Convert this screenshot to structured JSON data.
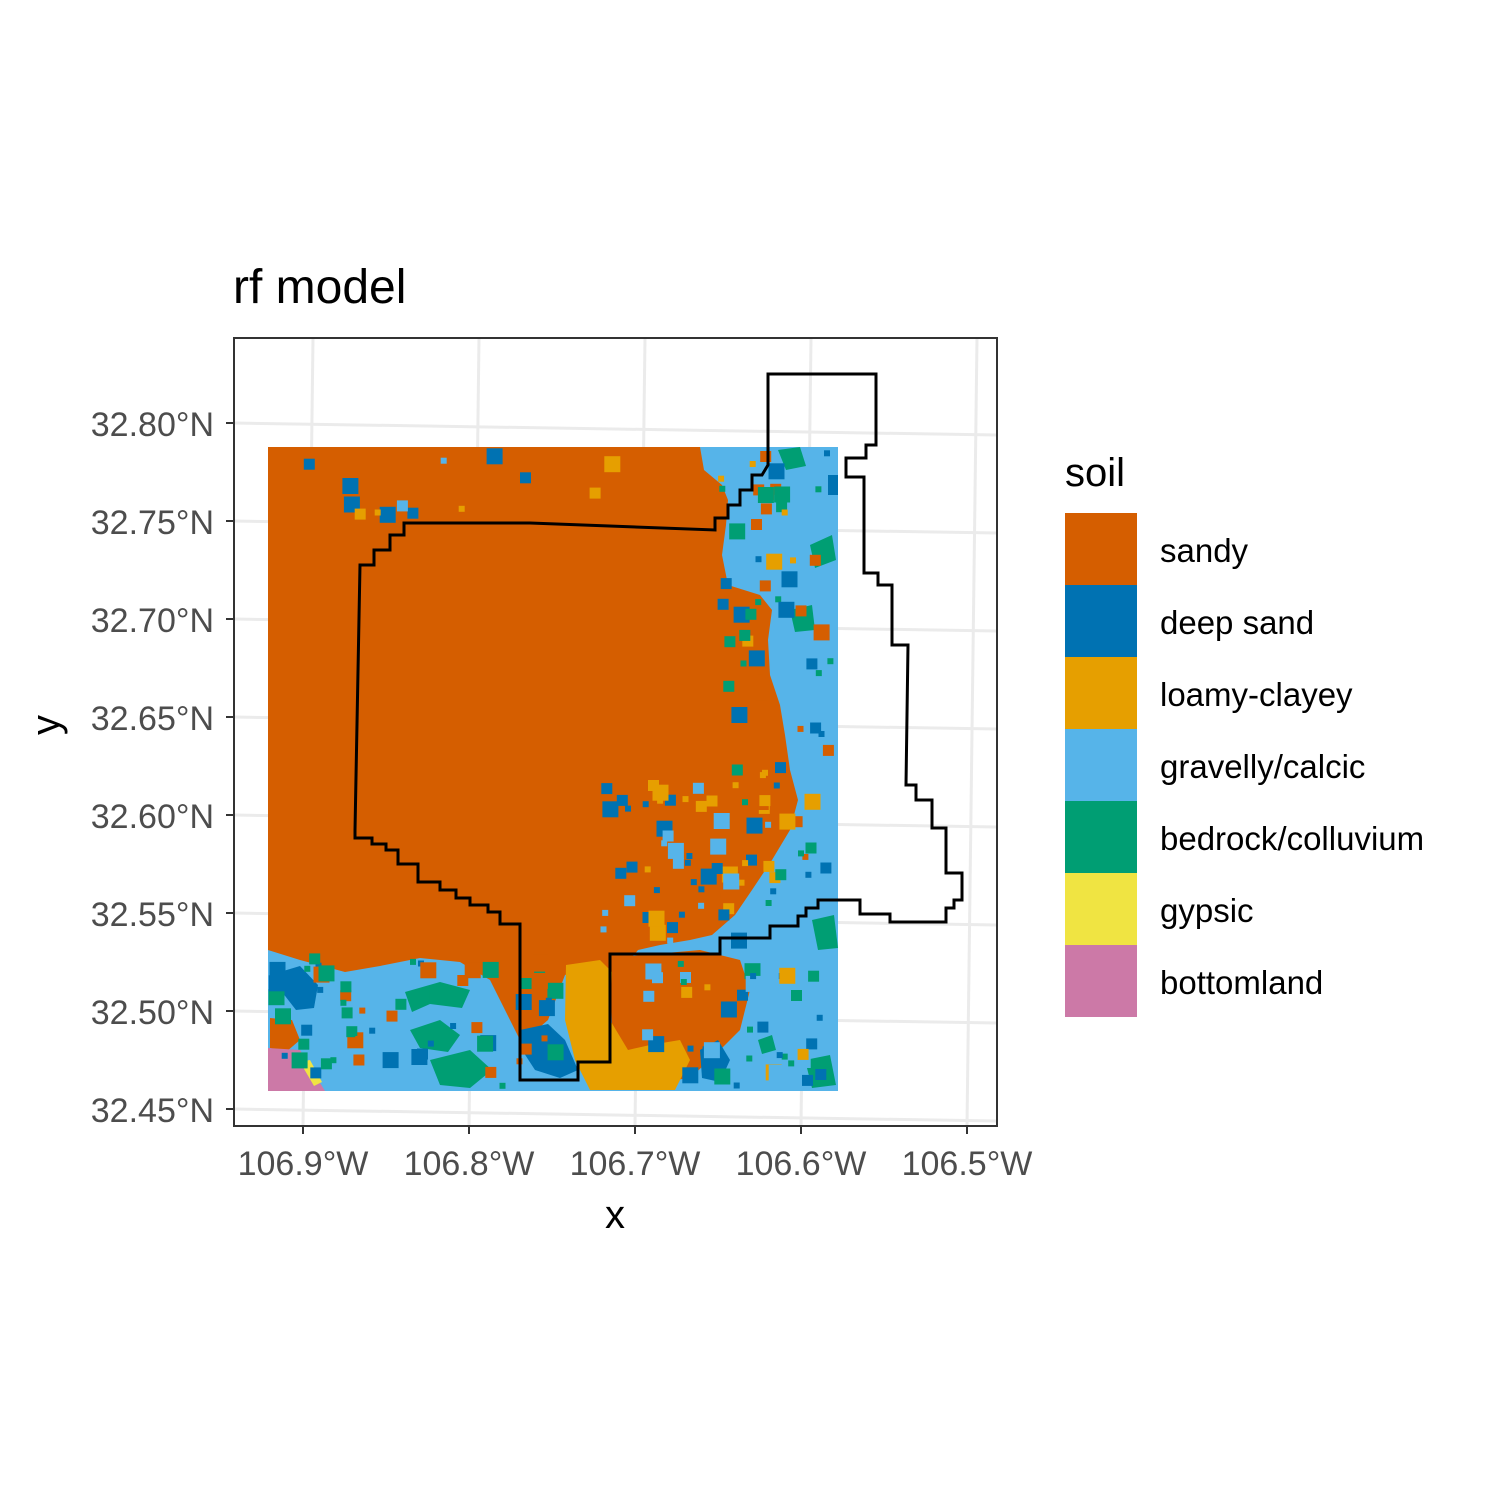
{
  "map": {
    "title": "rf model",
    "x_axis_title": "x",
    "y_axis_title": "y",
    "x_ticks": [
      "106.9°W",
      "106.8°W",
      "106.7°W",
      "106.6°W",
      "106.5°W"
    ],
    "y_ticks": [
      "32.80°N",
      "32.75°N",
      "32.70°N",
      "32.65°N",
      "32.60°N",
      "32.55°N",
      "32.50°N",
      "32.45°N"
    ],
    "legend_title": "soil",
    "legend": [
      {
        "label": "sandy",
        "color": "#D55E00"
      },
      {
        "label": "deep sand",
        "color": "#0072B2"
      },
      {
        "label": "loamy-clayey",
        "color": "#E69F00"
      },
      {
        "label": "gravelly/calcic",
        "color": "#56B4E9"
      },
      {
        "label": "bedrock/colluvium",
        "color": "#009E73"
      },
      {
        "label": "gypsic",
        "color": "#F0E442"
      },
      {
        "label": "bottomland",
        "color": "#CC79A7"
      }
    ]
  }
}
